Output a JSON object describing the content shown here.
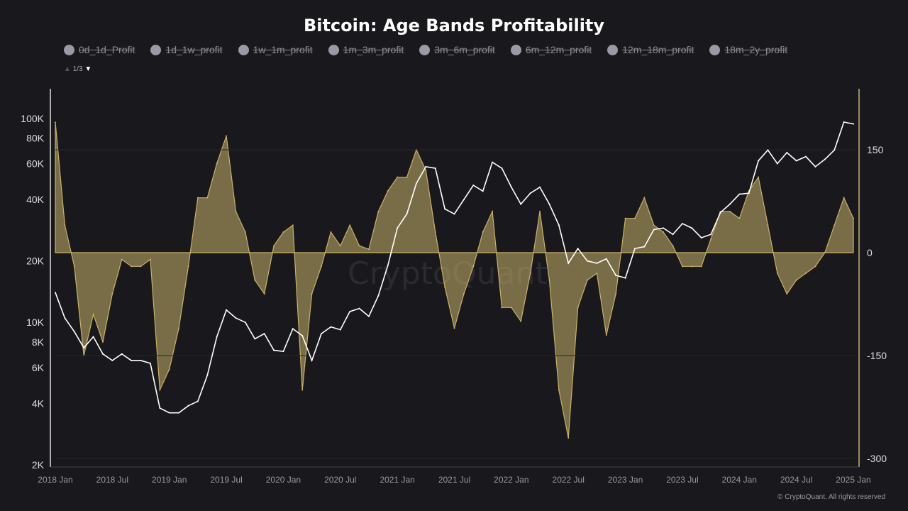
{
  "title": "Bitcoin: Age Bands Profitability",
  "legend": {
    "items": [
      "0d_1d_Profit",
      "1d_1w_profit",
      "1w_1m_profit",
      "1m_3m_profit",
      "3m_6m_profit",
      "6m_12m_profit",
      "12m_18m_profit",
      "18m_2y_profit"
    ],
    "page": "1/3"
  },
  "watermark": "CryptoQuant",
  "copyright": "© CryptoQuant. All rights reserved",
  "chart_data": {
    "type": "line",
    "x_ticks": [
      "2018 Jan",
      "2018 Jul",
      "2019 Jan",
      "2019 Jul",
      "2020 Jan",
      "2020 Jul",
      "2021 Jan",
      "2021 Jul",
      "2022 Jan",
      "2022 Jul",
      "2023 Jan",
      "2023 Jul",
      "2024 Jan",
      "2024 Jul",
      "2025 Jan"
    ],
    "left_axis": {
      "scale": "log",
      "ticks": [
        "2K",
        "4K",
        "6K",
        "8K",
        "10K",
        "20K",
        "40K",
        "60K",
        "80K",
        "100K"
      ],
      "tick_values": [
        2000,
        4000,
        6000,
        8000,
        10000,
        20000,
        40000,
        60000,
        80000,
        100000
      ],
      "range": [
        2000,
        110000
      ]
    },
    "right_axis": {
      "ticks": [
        "-300",
        "-150",
        "0",
        "150"
      ],
      "tick_values": [
        -300,
        -150,
        0,
        150
      ],
      "range": [
        -300,
        215
      ]
    },
    "x_start": "2018-01",
    "x_step": "month",
    "series": [
      {
        "axis": "left",
        "color": "#ffffff",
        "kind": "line",
        "values": [
          14000,
          10500,
          9000,
          7500,
          8500,
          7000,
          6500,
          7000,
          6500,
          6500,
          6300,
          3800,
          3600,
          3600,
          3900,
          4100,
          5500,
          8500,
          11500,
          10500,
          10000,
          8300,
          8800,
          7300,
          7200,
          9300,
          8600,
          6500,
          8800,
          9500,
          9200,
          11300,
          11700,
          10700,
          13500,
          19000,
          29000,
          34000,
          48000,
          58000,
          57000,
          36000,
          34000,
          40000,
          47000,
          44000,
          61000,
          57000,
          46000,
          38000,
          43000,
          46000,
          38000,
          30000,
          19500,
          23000,
          20000,
          19500,
          20500,
          17000,
          16500,
          23000,
          23500,
          28500,
          29000,
          27000,
          30500,
          29000,
          26000,
          27000,
          34500,
          38000,
          42500,
          43000,
          62000,
          70000,
          60000,
          68000,
          62000,
          65000,
          58000,
          63000,
          70000,
          96000,
          94000
        ]
      },
      {
        "axis": "right",
        "color": "#c9b26a",
        "kind": "area",
        "values": [
          190,
          40,
          -20,
          -150,
          -90,
          -130,
          -60,
          -10,
          -20,
          -20,
          -10,
          -200,
          -170,
          -110,
          -20,
          80,
          80,
          130,
          170,
          60,
          30,
          -40,
          -60,
          10,
          30,
          40,
          -200,
          -60,
          -20,
          30,
          10,
          40,
          10,
          5,
          60,
          90,
          110,
          110,
          150,
          120,
          30,
          -50,
          -110,
          -60,
          -20,
          30,
          60,
          -80,
          -80,
          -100,
          -30,
          60,
          -40,
          -200,
          -270,
          -80,
          -40,
          -30,
          -120,
          -60,
          50,
          50,
          80,
          40,
          30,
          10,
          -20,
          -20,
          -20,
          20,
          60,
          60,
          50,
          90,
          110,
          40,
          -30,
          -60,
          -40,
          -30,
          -20,
          0,
          40,
          80,
          50
        ]
      }
    ]
  }
}
